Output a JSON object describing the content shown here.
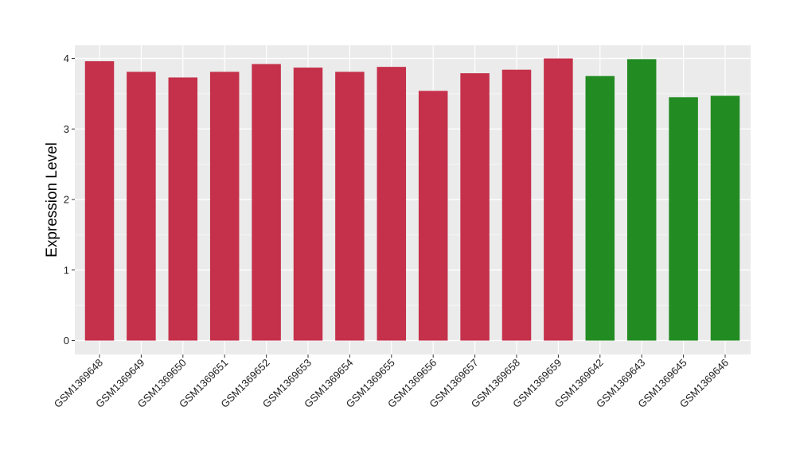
{
  "chart_data": {
    "type": "bar",
    "title": "",
    "xlabel": "",
    "ylabel": "Expression Level",
    "ylim": [
      0,
      4.2
    ],
    "yticks": [
      0,
      1,
      2,
      3,
      4
    ],
    "grid": true,
    "legend": "none",
    "categories": [
      "GSM1369648",
      "GSM1369649",
      "GSM1369650",
      "GSM1369651",
      "GSM1369652",
      "GSM1369653",
      "GSM1369654",
      "GSM1369655",
      "GSM1369656",
      "GSM1369657",
      "GSM1369658",
      "GSM1369659",
      "GSM1369642",
      "GSM1369643",
      "GSM1369645",
      "GSM1369646"
    ],
    "values": [
      3.96,
      3.81,
      3.73,
      3.81,
      3.92,
      3.87,
      3.81,
      3.88,
      3.54,
      3.79,
      3.84,
      4.0,
      3.75,
      3.99,
      3.45,
      3.47
    ],
    "groups": [
      0,
      0,
      0,
      0,
      0,
      0,
      0,
      0,
      0,
      0,
      0,
      0,
      1,
      1,
      1,
      1
    ],
    "group_colors": [
      "#C5304A",
      "#228B22"
    ]
  },
  "panel_background": "#EBEBEB",
  "grid_color": "#FFFFFF"
}
